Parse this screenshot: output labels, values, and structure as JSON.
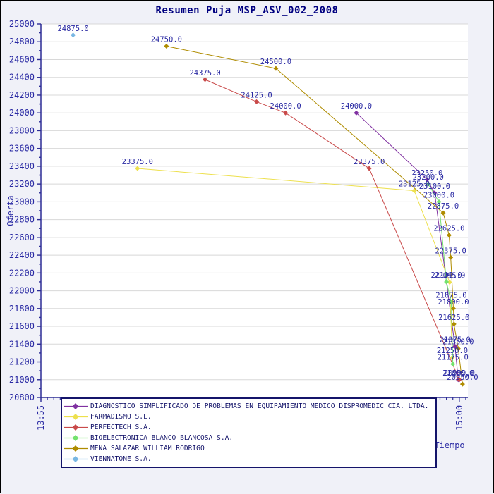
{
  "chart_data": {
    "type": "line",
    "title": "Resumen Puja MSP_ASV_002_2008",
    "xlabel": "Tiempo",
    "ylabel": "Oferta",
    "ylim": [
      20800,
      25000
    ],
    "y_tick_major": 200,
    "y_tick_minor": 100,
    "x_domain": [
      "13:55:00",
      "15:01:20"
    ],
    "x_ticks": [
      {
        "label": "13:55",
        "time": "13:55:00"
      },
      {
        "label": "15:00",
        "time": "15:00:00"
      }
    ],
    "grid": "horizontal",
    "legend_position": "bottom",
    "point_labels_visible": true,
    "series": [
      {
        "name": "DIAGNOSTICO SIMPLIFICADO DE PROBLEMAS EN EQUIPAMIENTO MEDICO DISPROMEDIC CIA. LTDA.",
        "color": "#8031a1",
        "points": [
          {
            "time": "14:44:00",
            "value": 24000
          },
          {
            "time": "14:55:00",
            "value": 23250
          },
          {
            "time": "14:56:10",
            "value": 23100
          },
          {
            "time": "14:59:20",
            "value": 21375
          },
          {
            "time": "14:59:50",
            "value": 21000
          }
        ]
      },
      {
        "name": "FARMADISMO S.L.",
        "color": "#ede04d",
        "points": [
          {
            "time": "14:10:00",
            "value": 23375
          },
          {
            "time": "14:53:00",
            "value": 23125
          },
          {
            "time": "14:58:30",
            "value": 22095
          },
          {
            "time": "14:58:55",
            "value": 21250
          }
        ]
      },
      {
        "name": "PERFECTECH S.A.",
        "color": "#c94a4a",
        "points": [
          {
            "time": "14:20:30",
            "value": 24375
          },
          {
            "time": "14:28:30",
            "value": 24125
          },
          {
            "time": "14:33:00",
            "value": 24000
          },
          {
            "time": "14:46:00",
            "value": 23375
          },
          {
            "time": "15:00:00",
            "value": 20999
          }
        ]
      },
      {
        "name": "BIOELECTRONICA BLANCO BLANCOSA S.A.",
        "color": "#74e26e",
        "points": [
          {
            "time": "14:55:10",
            "value": 23200
          },
          {
            "time": "14:56:50",
            "value": 23000
          },
          {
            "time": "14:58:00",
            "value": 22100
          },
          {
            "time": "14:58:45",
            "value": 21875
          },
          {
            "time": "14:59:00",
            "value": 21175
          }
        ]
      },
      {
        "name": "MENA SALAZAR WILLIAM RODRIGO",
        "color": "#af8c00",
        "points": [
          {
            "time": "14:14:30",
            "value": 24750
          },
          {
            "time": "14:31:30",
            "value": 24500
          },
          {
            "time": "14:57:30",
            "value": 22875
          },
          {
            "time": "14:58:25",
            "value": 22625
          },
          {
            "time": "14:58:40",
            "value": 22375
          },
          {
            "time": "14:59:05",
            "value": 21800
          },
          {
            "time": "14:59:10",
            "value": 21625
          },
          {
            "time": "14:59:50",
            "value": 21350
          },
          {
            "time": "15:00:30",
            "value": 20950
          }
        ]
      },
      {
        "name": "VIENNATONE S.A.",
        "color": "#79b7e3",
        "points": [
          {
            "time": "14:00:00",
            "value": 24875
          }
        ]
      }
    ]
  },
  "colors": {
    "background": "#f0f1f8",
    "plot_bg": "#ffffff",
    "grid": "#d8d8d8",
    "axis": "#2d2d96",
    "tick_text": "#2929a3",
    "title_text": "#000080",
    "label_text": "#2929a3",
    "legend_border": "#14146a",
    "legend_bg": "#ffffff",
    "legend_text": "#14146a"
  }
}
